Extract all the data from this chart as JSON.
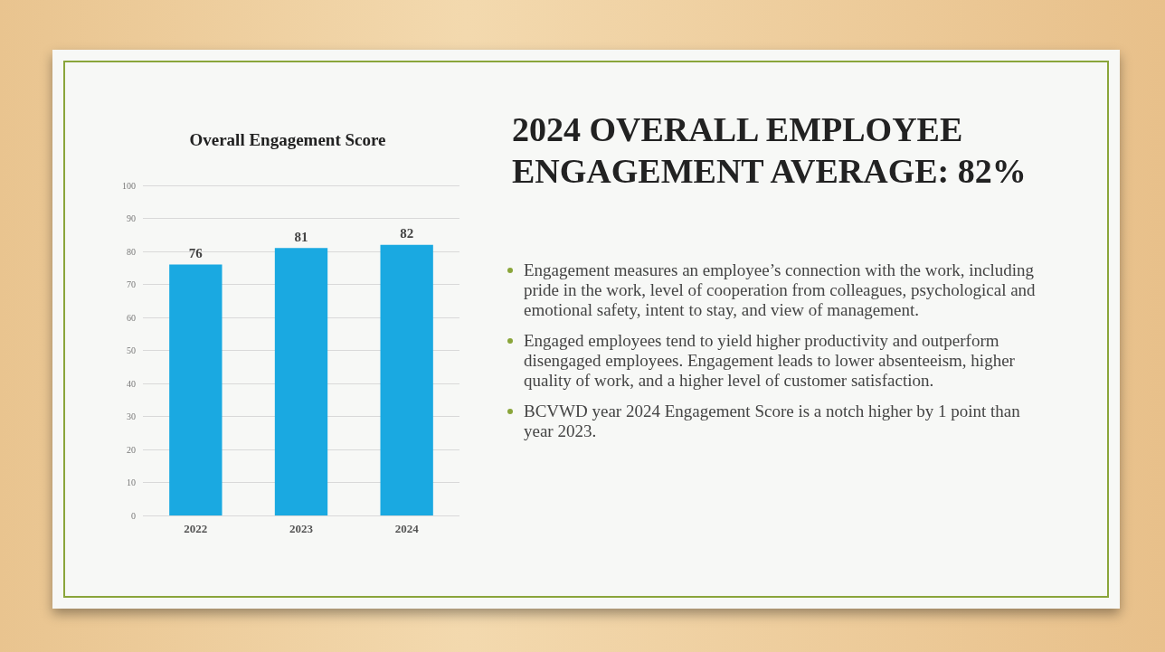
{
  "chart_data": {
    "type": "bar",
    "title": "Overall Engagement Score",
    "categories": [
      "2022",
      "2023",
      "2024"
    ],
    "values": [
      76,
      81,
      82
    ],
    "color": "#1aa9e1",
    "ylim": [
      0,
      100
    ],
    "yticks": [
      0,
      10,
      20,
      30,
      40,
      50,
      60,
      70,
      80,
      90,
      100
    ],
    "grid": "y",
    "data_labels": true,
    "annotations": [
      "2024 OVERALL EMPLOYEE ENGAGEMENT AVERAGE: 82%",
      "Engagement measures an employee’s connection with the work, including pride in the work, level of cooperation from colleagues, psychological and emotional safety, intent to stay, and view of management.",
      "Engaged employees tend to yield higher productivity and outperform disengaged employees.  Engagement leads to lower absenteeism, higher quality of work, and a higher level of customer satisfaction.",
      "BCVWD year 2024 Engagement Score is a notch higher by 1 point than year 2023."
    ]
  }
}
